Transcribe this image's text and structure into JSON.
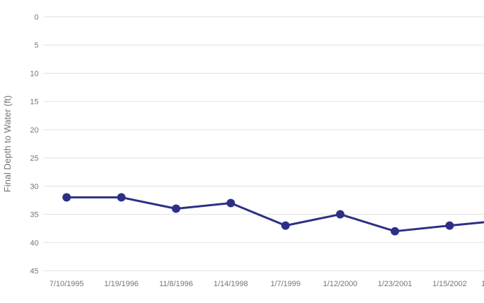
{
  "chart_data": {
    "type": "line",
    "title": "",
    "xlabel": "",
    "ylabel": "Final Depth to Water (ft)",
    "y_inverted": true,
    "ylim": [
      0,
      45
    ],
    "yticks": [
      0,
      5,
      10,
      15,
      20,
      25,
      30,
      35,
      40,
      45
    ],
    "categories": [
      "7/10/1995",
      "1/19/1996",
      "11/8/1996",
      "1/14/1998",
      "1/7/1999",
      "1/12/2000",
      "1/23/2001",
      "1/15/2002"
    ],
    "series": [
      {
        "name": "Final Depth to Water",
        "values": [
          32,
          32,
          34,
          33,
          37,
          35,
          38,
          37
        ]
      }
    ],
    "line_continues_past_right_edge": true,
    "value_at_right_edge": 36.4,
    "partial_next_tick_label": "1",
    "grid": true,
    "legend": false,
    "marker": "circle",
    "colors": {
      "line": "#2d2f87",
      "marker": "#2d2f87",
      "grid": "#e2e2e2",
      "tick_text": "#757575",
      "axis_label_text": "#757575",
      "background": "#ffffff"
    }
  }
}
